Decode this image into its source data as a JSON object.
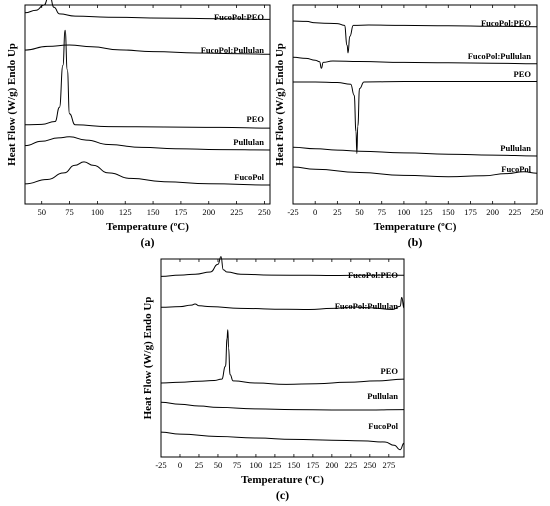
{
  "chart_data": [
    {
      "type": "line",
      "panel_label": "(a)",
      "xlabel": "Temperature (ºC)",
      "ylabel": "Heat Flow (W/g) Endo Up",
      "xlim": [
        35,
        255
      ],
      "xticks": [
        50,
        75,
        100,
        125,
        150,
        175,
        200,
        225,
        250
      ],
      "series": [
        {
          "name": "FucoPol:PEO",
          "peaks": [
            {
              "x": 57,
              "type": "endo",
              "height": 0.75
            }
          ],
          "curve": [
            [
              35,
              0.6
            ],
            [
              45,
              0.72
            ],
            [
              52,
              0.95
            ],
            [
              57,
              1.45
            ],
            [
              61,
              0.85
            ],
            [
              66,
              0.55
            ],
            [
              80,
              0.45
            ],
            [
              110,
              0.4
            ],
            [
              160,
              0.36
            ],
            [
              210,
              0.33
            ],
            [
              255,
              0.3
            ]
          ]
        },
        {
          "name": "FucoPol:Pullulan",
          "curve": [
            [
              35,
              0.45
            ],
            [
              55,
              0.62
            ],
            [
              75,
              0.68
            ],
            [
              95,
              0.6
            ],
            [
              120,
              0.46
            ],
            [
              150,
              0.38
            ],
            [
              190,
              0.32
            ],
            [
              230,
              0.28
            ],
            [
              255,
              0.26
            ]
          ]
        },
        {
          "name": "PEO",
          "peaks": [
            {
              "x": 71,
              "type": "endo",
              "height": 4.2
            }
          ],
          "curve": [
            [
              35,
              0.1
            ],
            [
              50,
              0.12
            ],
            [
              62,
              0.25
            ],
            [
              66,
              0.9
            ],
            [
              69,
              2.8
            ],
            [
              71,
              4.4
            ],
            [
              73,
              2.6
            ],
            [
              75,
              0.6
            ],
            [
              80,
              0.1
            ],
            [
              110,
              0.02
            ],
            [
              160,
              0.0
            ],
            [
              210,
              -0.02
            ],
            [
              255,
              -0.05
            ]
          ]
        },
        {
          "name": "Pullulan",
          "curve": [
            [
              35,
              0.2
            ],
            [
              50,
              0.4
            ],
            [
              65,
              0.55
            ],
            [
              75,
              0.6
            ],
            [
              90,
              0.45
            ],
            [
              110,
              0.25
            ],
            [
              140,
              0.12
            ],
            [
              170,
              0.06
            ],
            [
              210,
              0.02
            ],
            [
              255,
              0.0
            ]
          ]
        },
        {
          "name": "FucoPol",
          "curve": [
            [
              35,
              0.05
            ],
            [
              55,
              0.25
            ],
            [
              70,
              0.55
            ],
            [
              80,
              0.9
            ],
            [
              88,
              1.05
            ],
            [
              96,
              0.9
            ],
            [
              110,
              0.55
            ],
            [
              130,
              0.3
            ],
            [
              160,
              0.15
            ],
            [
              200,
              0.06
            ],
            [
              255,
              0.0
            ]
          ]
        }
      ]
    },
    {
      "type": "line",
      "panel_label": "(b)",
      "xlabel": "Temperature (ºC)",
      "ylabel": "Heat Flow (W/g) Endo Up",
      "xlim": [
        -25,
        250
      ],
      "xticks": [
        -25,
        0,
        25,
        50,
        75,
        100,
        125,
        150,
        175,
        200,
        225,
        250
      ],
      "series": [
        {
          "name": "FucoPol:PEO",
          "peaks": [
            {
              "x": 37,
              "type": "exo",
              "height": -1.4
            }
          ],
          "curve": [
            [
              -25,
              0.5
            ],
            [
              -10,
              0.48
            ],
            [
              0,
              0.42
            ],
            [
              10,
              0.4
            ],
            [
              25,
              0.38
            ],
            [
              33,
              0.3
            ],
            [
              36,
              -0.6
            ],
            [
              37,
              -0.95
            ],
            [
              39,
              -0.2
            ],
            [
              43,
              0.3
            ],
            [
              60,
              0.32
            ],
            [
              100,
              0.3
            ],
            [
              150,
              0.28
            ],
            [
              200,
              0.26
            ],
            [
              250,
              0.24
            ]
          ]
        },
        {
          "name": "FucoPol:Pullulan",
          "peaks": [
            {
              "x": 7,
              "type": "exo",
              "height": -0.4
            }
          ],
          "curve": [
            [
              -25,
              0.35
            ],
            [
              -10,
              0.3
            ],
            [
              0,
              0.22
            ],
            [
              5,
              0.15
            ],
            [
              7,
              -0.15
            ],
            [
              9,
              0.12
            ],
            [
              20,
              0.18
            ],
            [
              50,
              0.16
            ],
            [
              100,
              0.12
            ],
            [
              150,
              0.1
            ],
            [
              200,
              0.08
            ],
            [
              250,
              0.06
            ]
          ]
        },
        {
          "name": "PEO",
          "peaks": [
            {
              "x": 47,
              "type": "exo",
              "height": -6.5
            }
          ],
          "curve": [
            [
              -25,
              0.0
            ],
            [
              0,
              0.0
            ],
            [
              25,
              -0.05
            ],
            [
              40,
              -0.2
            ],
            [
              44,
              -1.2
            ],
            [
              46,
              -4.5
            ],
            [
              47,
              -6.5
            ],
            [
              48,
              -4.0
            ],
            [
              50,
              -0.6
            ],
            [
              55,
              0.0
            ],
            [
              100,
              0.05
            ],
            [
              150,
              0.05
            ],
            [
              200,
              0.05
            ],
            [
              250,
              0.05
            ]
          ]
        },
        {
          "name": "Pullulan",
          "curve": [
            [
              -25,
              0.4
            ],
            [
              0,
              0.33
            ],
            [
              25,
              0.27
            ],
            [
              50,
              0.22
            ],
            [
              100,
              0.14
            ],
            [
              150,
              0.08
            ],
            [
              200,
              0.04
            ],
            [
              250,
              0.0
            ]
          ]
        },
        {
          "name": "FucoPol",
          "curve": [
            [
              -25,
              0.5
            ],
            [
              0,
              0.4
            ],
            [
              50,
              0.25
            ],
            [
              100,
              0.12
            ],
            [
              150,
              0.06
            ],
            [
              190,
              0.1
            ],
            [
              215,
              0.2
            ],
            [
              235,
              0.28
            ],
            [
              250,
              0.22
            ]
          ]
        }
      ]
    },
    {
      "type": "line",
      "panel_label": "(c)",
      "xlabel": "Temperature (ºC)",
      "ylabel": "Heat Flow (W/g) Endo Up",
      "xlim": [
        -25,
        295
      ],
      "xticks": [
        -25,
        0,
        25,
        50,
        75,
        100,
        125,
        150,
        175,
        200,
        225,
        250,
        275
      ],
      "series": [
        {
          "name": "FucoPol:PEO",
          "peaks": [
            {
              "x": 54,
              "type": "endo",
              "height": 0.8
            }
          ],
          "curve": [
            [
              -25,
              0.3
            ],
            [
              0,
              0.36
            ],
            [
              20,
              0.4
            ],
            [
              40,
              0.5
            ],
            [
              50,
              0.85
            ],
            [
              54,
              1.2
            ],
            [
              57,
              0.6
            ],
            [
              62,
              0.5
            ],
            [
              80,
              0.4
            ],
            [
              120,
              0.36
            ],
            [
              170,
              0.35
            ],
            [
              200,
              0.34
            ],
            [
              240,
              0.35
            ],
            [
              270,
              0.36
            ],
            [
              295,
              0.35
            ]
          ]
        },
        {
          "name": "FucoPol:Pullulan",
          "curve": [
            [
              -25,
              0.35
            ],
            [
              0,
              0.38
            ],
            [
              15,
              0.45
            ],
            [
              20,
              0.5
            ],
            [
              25,
              0.42
            ],
            [
              40,
              0.38
            ],
            [
              80,
              0.3
            ],
            [
              140,
              0.26
            ],
            [
              170,
              0.25
            ],
            [
              200,
              0.3
            ],
            [
              230,
              0.36
            ],
            [
              250,
              0.33
            ],
            [
              280,
              0.25
            ],
            [
              290,
              0.4
            ],
            [
              292,
              0.8
            ],
            [
              295,
              0.3
            ]
          ]
        },
        {
          "name": "PEO",
          "peaks": [
            {
              "x": 63,
              "type": "endo",
              "height": 3.6
            }
          ],
          "curve": [
            [
              -25,
              0.0
            ],
            [
              0,
              0.06
            ],
            [
              25,
              0.12
            ],
            [
              45,
              0.18
            ],
            [
              55,
              0.28
            ],
            [
              60,
              1.2
            ],
            [
              62,
              3.2
            ],
            [
              63,
              3.8
            ],
            [
              64,
              2.5
            ],
            [
              66,
              0.6
            ],
            [
              70,
              0.15
            ],
            [
              100,
              0.0
            ],
            [
              140,
              -0.1
            ],
            [
              180,
              -0.05
            ],
            [
              220,
              0.05
            ],
            [
              260,
              0.15
            ],
            [
              295,
              0.28
            ]
          ]
        },
        {
          "name": "Pullulan",
          "curve": [
            [
              -25,
              0.35
            ],
            [
              0,
              0.26
            ],
            [
              25,
              0.18
            ],
            [
              50,
              0.12
            ],
            [
              100,
              0.05
            ],
            [
              150,
              0.02
            ],
            [
              200,
              0.0
            ],
            [
              250,
              0.0
            ],
            [
              295,
              0.02
            ]
          ]
        },
        {
          "name": "FucoPol",
          "curve": [
            [
              -25,
              0.45
            ],
            [
              0,
              0.36
            ],
            [
              50,
              0.25
            ],
            [
              100,
              0.18
            ],
            [
              150,
              0.12
            ],
            [
              200,
              0.08
            ],
            [
              240,
              0.05
            ],
            [
              270,
              0.0
            ],
            [
              282,
              -0.15
            ],
            [
              290,
              -0.35
            ],
            [
              295,
              -0.05
            ]
          ]
        }
      ]
    }
  ]
}
